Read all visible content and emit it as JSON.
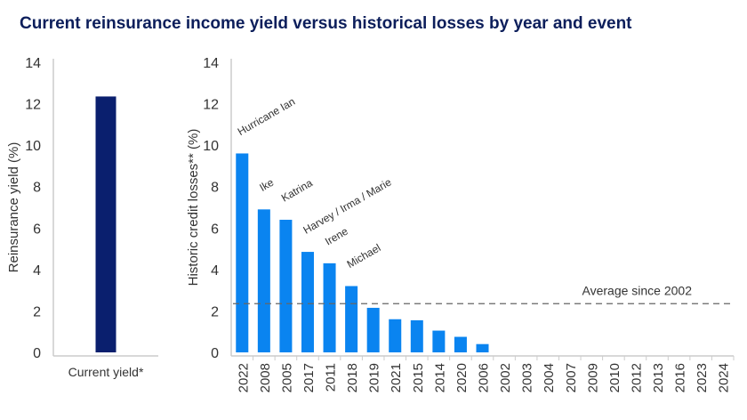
{
  "title": "Current reinsurance income yield versus historical losses by year and event",
  "chart_data": [
    {
      "type": "bar",
      "categories": [
        "Current yield*"
      ],
      "values": [
        12.35
      ],
      "ylabel": "Reinsurance yield (%)",
      "ylim": [
        0,
        14
      ],
      "yticks": [
        0,
        2,
        4,
        6,
        8,
        10,
        12,
        14
      ],
      "color": "#0a1f6e",
      "grid": false
    },
    {
      "type": "bar",
      "categories": [
        "2022",
        "2008",
        "2005",
        "2017",
        "2011",
        "2018",
        "2019",
        "2021",
        "2015",
        "2014",
        "2020",
        "2006",
        "2002",
        "2003",
        "2004",
        "2007",
        "2009",
        "2010",
        "2012",
        "2013",
        "2016",
        "2023",
        "2024"
      ],
      "values": [
        9.6,
        6.9,
        6.4,
        4.85,
        4.3,
        3.2,
        2.15,
        1.6,
        1.55,
        1.05,
        0.75,
        0.4,
        0,
        0,
        0,
        0,
        0,
        0,
        0,
        0,
        0,
        0,
        0
      ],
      "ylabel": "Historic credit losses** (%)",
      "ylim": [
        0,
        14
      ],
      "yticks": [
        0,
        2,
        4,
        6,
        8,
        10,
        12,
        14
      ],
      "color": "#0a84f0",
      "grid": false,
      "annotations": [
        {
          "category": "2022",
          "text": "Hurricane Ian"
        },
        {
          "category": "2008",
          "text": "Ike"
        },
        {
          "category": "2005",
          "text": "Katrina"
        },
        {
          "category": "2017",
          "text": "Harvey / Irma / Marie"
        },
        {
          "category": "2011",
          "text": "Irene"
        },
        {
          "category": "2018",
          "text": "Michael"
        }
      ],
      "reference_line": {
        "label": "Average since 2002",
        "value": 2.35,
        "style": "dashed"
      }
    }
  ]
}
